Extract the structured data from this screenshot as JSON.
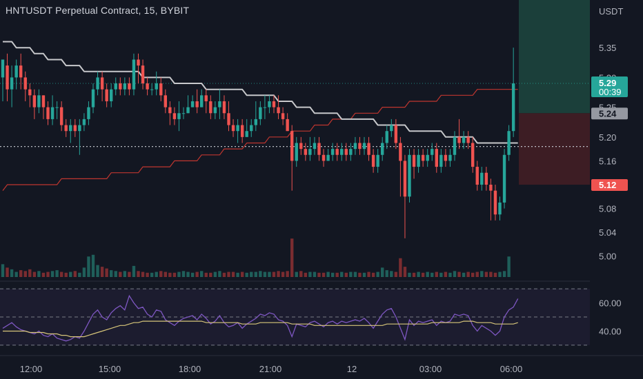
{
  "header": {
    "title": "HNTUSDT Perpetual Contract, 15, BYBIT"
  },
  "chart_data": {
    "type": "candlestick",
    "title": "HNTUSDT Perpetual Contract, 15, BYBIT",
    "currency": "USDT",
    "ylim": [
      4.965,
      5.43
    ],
    "price_ticks": [
      "5.35",
      "5.30",
      "5.25",
      "5.20",
      "5.16",
      "5.12",
      "5.08",
      "5.04",
      "5.00"
    ],
    "time_ticks": [
      "12:00",
      "15:00",
      "18:00",
      "21:00",
      "12",
      "03:00",
      "06:00"
    ],
    "candles": [
      [
        5.3,
        5.33,
        5.33,
        5.26
      ],
      [
        5.32,
        5.28,
        5.34,
        5.26
      ],
      [
        5.28,
        5.3,
        5.32,
        5.25
      ],
      [
        5.3,
        5.32,
        5.33,
        5.28
      ],
      [
        5.32,
        5.3,
        5.34,
        5.28
      ],
      [
        5.3,
        5.28,
        5.31,
        5.26
      ],
      [
        5.28,
        5.27,
        5.29,
        5.25
      ],
      [
        5.27,
        5.25,
        5.28,
        5.23
      ],
      [
        5.25,
        5.27,
        5.28,
        5.24
      ],
      [
        5.27,
        5.25,
        5.27,
        5.23
      ],
      [
        5.25,
        5.23,
        5.26,
        5.22
      ],
      [
        5.23,
        5.25,
        5.27,
        5.22
      ],
      [
        5.25,
        5.25,
        5.26,
        5.23
      ],
      [
        5.25,
        5.22,
        5.26,
        5.21
      ],
      [
        5.22,
        5.21,
        5.23,
        5.2
      ],
      [
        5.21,
        5.22,
        5.23,
        5.19
      ],
      [
        5.22,
        5.21,
        5.23,
        5.2
      ],
      [
        5.21,
        5.22,
        5.23,
        5.17
      ],
      [
        5.22,
        5.23,
        5.24,
        5.21
      ],
      [
        5.23,
        5.25,
        5.26,
        5.22
      ],
      [
        5.25,
        5.28,
        5.29,
        5.24
      ],
      [
        5.28,
        5.3,
        5.31,
        5.27
      ],
      [
        5.3,
        5.28,
        5.31,
        5.26
      ],
      [
        5.28,
        5.26,
        5.29,
        5.25
      ],
      [
        5.26,
        5.28,
        5.29,
        5.25
      ],
      [
        5.28,
        5.29,
        5.3,
        5.27
      ],
      [
        5.29,
        5.28,
        5.3,
        5.27
      ],
      [
        5.28,
        5.29,
        5.3,
        5.27
      ],
      [
        5.29,
        5.28,
        5.3,
        5.27
      ],
      [
        5.28,
        5.33,
        5.34,
        5.27
      ],
      [
        5.33,
        5.32,
        5.34,
        5.29
      ],
      [
        5.32,
        5.29,
        5.33,
        5.28
      ],
      [
        5.29,
        5.28,
        5.3,
        5.27
      ],
      [
        5.28,
        5.28,
        5.29,
        5.27
      ],
      [
        5.28,
        5.29,
        5.31,
        5.27
      ],
      [
        5.29,
        5.27,
        5.3,
        5.26
      ],
      [
        5.27,
        5.25,
        5.28,
        5.24
      ],
      [
        5.25,
        5.24,
        5.26,
        5.22
      ],
      [
        5.24,
        5.23,
        5.25,
        5.22
      ],
      [
        5.23,
        5.24,
        5.26,
        5.21
      ],
      [
        5.24,
        5.24,
        5.25,
        5.23
      ],
      [
        5.24,
        5.25,
        5.27,
        5.24
      ],
      [
        5.25,
        5.26,
        5.27,
        5.25
      ],
      [
        5.26,
        5.25,
        5.28,
        5.24
      ],
      [
        5.25,
        5.27,
        5.28,
        5.25
      ],
      [
        5.27,
        5.26,
        5.28,
        5.24
      ],
      [
        5.26,
        5.24,
        5.27,
        5.23
      ],
      [
        5.24,
        5.25,
        5.26,
        5.23
      ],
      [
        5.25,
        5.26,
        5.28,
        5.23
      ],
      [
        5.26,
        5.24,
        5.27,
        5.23
      ],
      [
        5.24,
        5.22,
        5.26,
        5.21
      ],
      [
        5.22,
        5.21,
        5.23,
        5.2
      ],
      [
        5.21,
        5.22,
        5.23,
        5.19
      ],
      [
        5.22,
        5.2,
        5.23,
        5.19
      ],
      [
        5.2,
        5.21,
        5.23,
        5.2
      ],
      [
        5.21,
        5.22,
        5.23,
        5.2
      ],
      [
        5.22,
        5.23,
        5.26,
        5.21
      ],
      [
        5.23,
        5.25,
        5.26,
        5.22
      ],
      [
        5.25,
        5.25,
        5.27,
        5.23
      ],
      [
        5.25,
        5.26,
        5.27,
        5.24
      ],
      [
        5.26,
        5.25,
        5.27,
        5.24
      ],
      [
        5.25,
        5.24,
        5.27,
        5.23
      ],
      [
        5.24,
        5.23,
        5.25,
        5.22
      ],
      [
        5.23,
        5.21,
        5.24,
        5.21
      ],
      [
        5.21,
        5.16,
        5.22,
        5.11
      ],
      [
        5.16,
        5.19,
        5.2,
        5.15
      ],
      [
        5.19,
        5.18,
        5.2,
        5.17
      ],
      [
        5.18,
        5.17,
        5.19,
        5.16
      ],
      [
        5.17,
        5.18,
        5.2,
        5.16
      ],
      [
        5.18,
        5.19,
        5.2,
        5.17
      ],
      [
        5.19,
        5.17,
        5.2,
        5.16
      ],
      [
        5.17,
        5.16,
        5.18,
        5.15
      ],
      [
        5.16,
        5.17,
        5.18,
        5.16
      ],
      [
        5.17,
        5.18,
        5.19,
        5.16
      ],
      [
        5.18,
        5.17,
        5.19,
        5.16
      ],
      [
        5.17,
        5.18,
        5.19,
        5.16
      ],
      [
        5.18,
        5.17,
        5.19,
        5.16
      ],
      [
        5.17,
        5.18,
        5.19,
        5.16
      ],
      [
        5.18,
        5.19,
        5.2,
        5.17
      ],
      [
        5.19,
        5.18,
        5.2,
        5.17
      ],
      [
        5.18,
        5.19,
        5.2,
        5.17
      ],
      [
        5.19,
        5.17,
        5.2,
        5.16
      ],
      [
        5.17,
        5.15,
        5.18,
        5.14
      ],
      [
        5.15,
        5.17,
        5.18,
        5.14
      ],
      [
        5.17,
        5.19,
        5.2,
        5.16
      ],
      [
        5.19,
        5.21,
        5.22,
        5.18
      ],
      [
        5.21,
        5.22,
        5.23,
        5.2
      ],
      [
        5.22,
        5.19,
        5.23,
        5.18
      ],
      [
        5.19,
        5.16,
        5.2,
        5.1
      ],
      [
        5.16,
        5.1,
        5.17,
        5.03
      ],
      [
        5.1,
        5.17,
        5.18,
        5.09
      ],
      [
        5.17,
        5.15,
        5.18,
        5.13
      ],
      [
        5.15,
        5.17,
        5.18,
        5.14
      ],
      [
        5.17,
        5.16,
        5.18,
        5.15
      ],
      [
        5.16,
        5.17,
        5.18,
        5.15
      ],
      [
        5.17,
        5.18,
        5.19,
        5.16
      ],
      [
        5.18,
        5.15,
        5.19,
        5.14
      ],
      [
        5.15,
        5.17,
        5.18,
        5.14
      ],
      [
        5.17,
        5.16,
        5.18,
        5.15
      ],
      [
        5.16,
        5.17,
        5.18,
        5.15
      ],
      [
        5.17,
        5.2,
        5.21,
        5.16
      ],
      [
        5.2,
        5.19,
        5.23,
        5.18
      ],
      [
        5.19,
        5.2,
        5.21,
        5.18
      ],
      [
        5.2,
        5.19,
        5.21,
        5.18
      ],
      [
        5.19,
        5.15,
        5.2,
        5.14
      ],
      [
        5.15,
        5.12,
        5.16,
        5.11
      ],
      [
        5.12,
        5.14,
        5.15,
        5.11
      ],
      [
        5.14,
        5.12,
        5.15,
        5.11
      ],
      [
        5.12,
        5.11,
        5.13,
        5.06
      ],
      [
        5.11,
        5.07,
        5.12,
        5.06
      ],
      [
        5.07,
        5.09,
        5.1,
        5.06
      ],
      [
        5.09,
        5.17,
        5.18,
        5.08
      ],
      [
        5.17,
        5.21,
        5.22,
        5.16
      ],
      [
        5.21,
        5.29,
        5.35,
        5.2
      ]
    ],
    "volume": [
      30,
      22,
      18,
      12,
      16,
      14,
      18,
      12,
      14,
      10,
      12,
      14,
      16,
      12,
      10,
      12,
      14,
      10,
      22,
      48,
      52,
      28,
      24,
      20,
      16,
      14,
      12,
      14,
      12,
      26,
      14,
      12,
      10,
      10,
      12,
      14,
      12,
      10,
      10,
      12,
      14,
      12,
      10,
      12,
      14,
      10,
      10,
      12,
      14,
      10,
      12,
      12,
      10,
      12,
      10,
      12,
      12,
      14,
      12,
      12,
      12,
      14,
      12,
      14,
      90,
      12,
      14,
      10,
      12,
      12,
      10,
      10,
      12,
      10,
      10,
      12,
      10,
      12,
      12,
      10,
      10,
      12,
      10,
      12,
      22,
      16,
      14,
      12,
      44,
      24,
      10,
      10,
      12,
      10,
      12,
      10,
      12,
      10,
      12,
      10,
      14,
      12,
      10,
      12,
      10,
      12,
      14,
      12,
      12,
      10,
      12,
      14,
      48
    ],
    "moving_average": [
      5.36,
      5.36,
      5.36,
      5.35,
      5.35,
      5.35,
      5.35,
      5.34,
      5.34,
      5.34,
      5.33,
      5.33,
      5.33,
      5.33,
      5.32,
      5.32,
      5.32,
      5.32,
      5.31,
      5.31,
      5.31,
      5.31,
      5.31,
      5.31,
      5.31,
      5.31,
      5.31,
      5.31,
      5.31,
      5.31,
      5.31,
      5.3,
      5.3,
      5.3,
      5.3,
      5.3,
      5.3,
      5.3,
      5.29,
      5.29,
      5.29,
      5.29,
      5.29,
      5.29,
      5.29,
      5.28,
      5.28,
      5.28,
      5.28,
      5.28,
      5.28,
      5.28,
      5.28,
      5.28,
      5.27,
      5.27,
      5.27,
      5.27,
      5.27,
      5.27,
      5.27,
      5.26,
      5.26,
      5.26,
      5.26,
      5.25,
      5.25,
      5.25,
      5.25,
      5.24,
      5.24,
      5.24,
      5.24,
      5.24,
      5.24,
      5.23,
      5.23,
      5.23,
      5.23,
      5.23,
      5.23,
      5.23,
      5.23,
      5.22,
      5.22,
      5.22,
      5.22,
      5.22,
      5.22,
      5.22,
      5.21,
      5.21,
      5.21,
      5.21,
      5.21,
      5.21,
      5.21,
      5.21,
      5.2,
      5.2,
      5.2,
      5.2,
      5.2,
      5.2,
      5.2,
      5.19,
      5.19,
      5.19,
      5.19,
      5.19,
      5.19,
      5.19,
      5.19,
      5.19,
      5.19
    ],
    "long_moving_average": [
      5.11,
      5.12,
      5.12,
      5.12,
      5.12,
      5.12,
      5.12,
      5.12,
      5.12,
      5.12,
      5.12,
      5.12,
      5.12,
      5.13,
      5.13,
      5.13,
      5.13,
      5.13,
      5.13,
      5.13,
      5.13,
      5.13,
      5.13,
      5.13,
      5.14,
      5.14,
      5.14,
      5.14,
      5.14,
      5.14,
      5.14,
      5.15,
      5.15,
      5.15,
      5.15,
      5.15,
      5.15,
      5.15,
      5.16,
      5.16,
      5.16,
      5.16,
      5.16,
      5.16,
      5.17,
      5.17,
      5.17,
      5.17,
      5.17,
      5.18,
      5.18,
      5.18,
      5.18,
      5.18,
      5.19,
      5.19,
      5.19,
      5.19,
      5.19,
      5.2,
      5.2,
      5.2,
      5.2,
      5.2,
      5.21,
      5.21,
      5.21,
      5.21,
      5.21,
      5.22,
      5.22,
      5.22,
      5.22,
      5.23,
      5.23,
      5.23,
      5.23,
      5.23,
      5.24,
      5.24,
      5.24,
      5.24,
      5.24,
      5.24,
      5.25,
      5.25,
      5.25,
      5.25,
      5.25,
      5.25,
      5.26,
      5.26,
      5.26,
      5.26,
      5.26,
      5.26,
      5.26,
      5.27,
      5.27,
      5.27,
      5.27,
      5.27,
      5.27,
      5.27,
      5.27,
      5.28,
      5.28,
      5.28,
      5.28,
      5.28,
      5.28,
      5.28,
      5.28,
      5.28,
      5.28
    ],
    "rsi": [
      42,
      44,
      46,
      43,
      41,
      40,
      39,
      38,
      40,
      37,
      36,
      38,
      35,
      34,
      33,
      34,
      36,
      35,
      40,
      46,
      52,
      55,
      50,
      48,
      53,
      56,
      58,
      55,
      65,
      60,
      56,
      57,
      52,
      50,
      55,
      54,
      48,
      46,
      44,
      47,
      49,
      50,
      51,
      48,
      52,
      49,
      45,
      47,
      51,
      46,
      43,
      44,
      46,
      42,
      45,
      47,
      49,
      52,
      51,
      53,
      52,
      48,
      47,
      44,
      36,
      45,
      44,
      43,
      46,
      47,
      45,
      43,
      46,
      47,
      45,
      47,
      46,
      47,
      48,
      47,
      49,
      46,
      42,
      47,
      52,
      55,
      56,
      50,
      42,
      34,
      48,
      44,
      47,
      46,
      47,
      48,
      44,
      47,
      46,
      47,
      52,
      51,
      52,
      51,
      44,
      40,
      44,
      42,
      40,
      37,
      40,
      50,
      55,
      57,
      63
    ],
    "rsi_ma": [
      40,
      40,
      40,
      40,
      40,
      40,
      39,
      39,
      39,
      39,
      38,
      38,
      38,
      37,
      37,
      36,
      36,
      36,
      36,
      37,
      38,
      39,
      40,
      41,
      42,
      43,
      44,
      44,
      45,
      46,
      46,
      47,
      47,
      47,
      47,
      47,
      47,
      47,
      47,
      47,
      47,
      47,
      47,
      47,
      47,
      46,
      46,
      46,
      46,
      46,
      46,
      46,
      46,
      45,
      45,
      45,
      45,
      46,
      46,
      46,
      46,
      46,
      46,
      46,
      45,
      45,
      45,
      45,
      45,
      44,
      44,
      44,
      44,
      44,
      44,
      44,
      44,
      44,
      44,
      44,
      44,
      44,
      44,
      44,
      44,
      45,
      45,
      45,
      45,
      45,
      45,
      45,
      45,
      45,
      45,
      46,
      46,
      46,
      46,
      46,
      46,
      46,
      47,
      47,
      47,
      46,
      46,
      46,
      46,
      45,
      45,
      45,
      45,
      45,
      46
    ],
    "rsi_ticks": [
      "60.00",
      "40.00"
    ],
    "rsi_levels": [
      70,
      50,
      30
    ],
    "rsi_ylim": [
      28,
      72
    ],
    "price_lines": {
      "dotted_level": 5.184,
      "last_price_line": 5.29
    },
    "position": {
      "entry": 5.24,
      "target": 5.43,
      "stop": 5.12
    },
    "price_labels": {
      "last_price": "5.29",
      "countdown": "00:39",
      "entry": "5.24",
      "stop": "5.12"
    },
    "colors": {
      "up": "#26a69a",
      "down": "#ef5350",
      "vol_up": "#1f5f5a",
      "vol_down": "#7a2c30",
      "ma": "#c8c9cc",
      "long_ma": "#c0362f",
      "rsi": "#7e57c2",
      "rsi_ma": "#d8c67a",
      "target_zone": "#1b3f3a",
      "stop_zone": "#3d1d24"
    }
  }
}
